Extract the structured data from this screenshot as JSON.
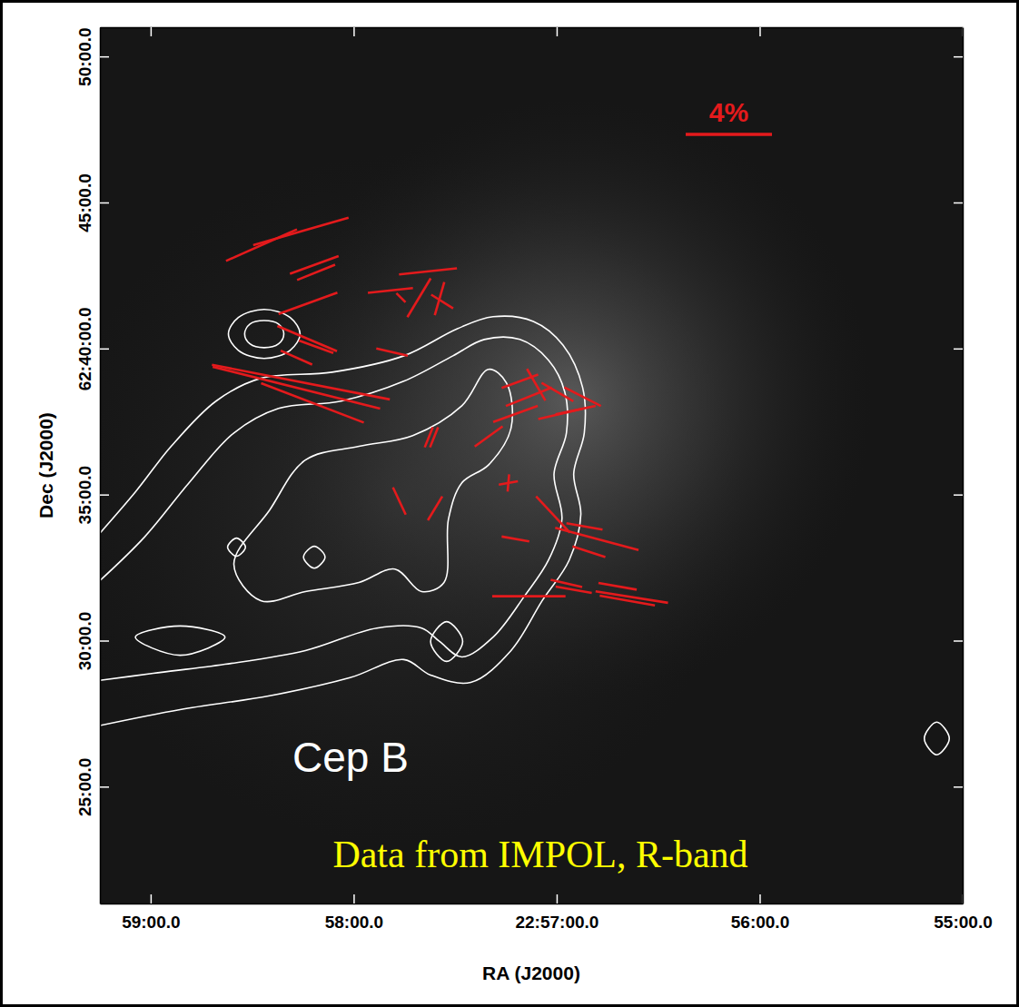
{
  "chart_data": {
    "type": "polarization_map",
    "x_label": "RA (J2000)",
    "y_label": "Dec (J2000)",
    "xlim": [
      59.25,
      55.0
    ],
    "ylim": [
      21,
      51
    ],
    "xticks": [
      {
        "value": 59,
        "label": "59:00.0"
      },
      {
        "value": 58,
        "label": "58:00.0"
      },
      {
        "value": 57,
        "label": "22:57:00.0"
      },
      {
        "value": 56,
        "label": "56:00.0"
      },
      {
        "value": 55,
        "label": "55:00.0"
      }
    ],
    "yticks": [
      {
        "value": 50,
        "label": "50:00.0"
      },
      {
        "value": 45,
        "label": "45:00.0"
      },
      {
        "value": 40,
        "label": "62:40:00.0"
      },
      {
        "value": 35,
        "label": "35:00.0"
      },
      {
        "value": 30,
        "label": "30:00.0"
      },
      {
        "value": 25,
        "label": "25:00.0"
      }
    ],
    "vectors": {
      "color": "#e41a1c",
      "ra": [
        58.454,
        58.26,
        58.194,
        58.185,
        58.225,
        57.819,
        57.634,
        57.678,
        57.577,
        57.564,
        57.767,
        57.811,
        58.229,
        58.185,
        58.26,
        58.282,
        58.203,
        58.282,
        57.63,
        57.604,
        57.181,
        57.137,
        57.203,
        57.335,
        57.101,
        56.996,
        56.872,
        56.982,
        56.907,
        57.775,
        57.599,
        57.238,
        57.238,
        57.018,
        56.802,
        56.863,
        57.203,
        56.841,
        57.137,
        56.952,
        56.916,
        56.7,
        56.63,
        56.652
      ],
      "dec": [
        43.54,
        44.01,
        42.86,
        42.61,
        41.55,
        41.99,
        42.64,
        41.74,
        41.71,
        41.61,
        41.74,
        39.88,
        40.34,
        40.06,
        38.85,
        38.66,
        38.14,
        39.69,
        36.96,
        36.96,
        38.88,
        38.35,
        37.76,
        36.99,
        38.76,
        38.51,
        38.35,
        37.76,
        37.89,
        34.78,
        34.53,
        35.4,
        35.4,
        34.32,
        33.48,
        33.91,
        33.48,
        33.04,
        31.52,
        31.96,
        31.74,
        31.86,
        31.49,
        31.37
      ],
      "p": [
        3.6,
        4.6,
        2.4,
        1.9,
        2.9,
        2.1,
        2.7,
        2.1,
        1.6,
        1.2,
        0.6,
        1.5,
        3.0,
        1.7,
        8.4,
        8.0,
        5.1,
        1.6,
        1.0,
        1.0,
        1.8,
        2.3,
        2.2,
        1.6,
        1.7,
        1.7,
        1.9,
        2.1,
        1.9,
        1.4,
        1.3,
        0.9,
        0.8,
        2.3,
        4.0,
        1.7,
        1.3,
        1.6,
        3.4,
        1.5,
        1.7,
        1.8,
        3.4,
        2.6
      ],
      "angle": [
        114,
        106,
        110,
        112,
        110,
        96,
        96,
        149,
        164,
        58,
        45,
        77,
        67,
        70,
        79,
        76,
        69,
        66,
        158,
        158,
        110,
        112,
        110,
        126,
        30,
        60,
        63,
        103,
        102,
        25,
        149,
        100,
        175,
        43,
        75,
        80,
        80,
        72,
        90,
        77,
        80,
        80,
        81,
        80
      ]
    },
    "scale_bar": {
      "value": 4,
      "label": "4%"
    },
    "contours": {
      "color": "#ffffff",
      "open": [
        {
          "ra": [
            59.26,
            59.075,
            58.899,
            58.678,
            58.458,
            58.106,
            57.753,
            57.489,
            57.313,
            57.115,
            56.969,
            56.872,
            56.864,
            56.916,
            56.881,
            56.938,
            57.071,
            57.225,
            57.423,
            57.621,
            57.753,
            58.018,
            58.414,
            58.855,
            59.26
          ],
          "dec": [
            33.6,
            35.09,
            36.65,
            38.2,
            38.98,
            39.19,
            39.75,
            40.68,
            41.09,
            40.93,
            40.12,
            38.66,
            37.11,
            35.71,
            34.32,
            32.76,
            31.37,
            29.66,
            28.57,
            28.82,
            29.35,
            28.73,
            28.11,
            27.64,
            27.08
          ]
        },
        {
          "ra": [
            59.26,
            59.031,
            58.811,
            58.59,
            58.37,
            58.062,
            57.753,
            57.511,
            57.357,
            57.181,
            57.04,
            56.96,
            56.952,
            57.013,
            56.974,
            57.04,
            57.159,
            57.313,
            57.467,
            57.577,
            57.665,
            57.886,
            58.238,
            58.634,
            58.987,
            59.26
          ],
          "dec": [
            31.99,
            33.54,
            35.4,
            37.11,
            37.95,
            38.2,
            38.88,
            39.75,
            40.31,
            40.31,
            39.6,
            38.51,
            37.11,
            35.71,
            34.16,
            32.76,
            31.52,
            30.12,
            29.44,
            29.97,
            30.43,
            30.43,
            29.66,
            29.19,
            28.88,
            28.63
          ]
        }
      ],
      "closed": [
        {
          "ra": [
            58.59,
            58.414,
            58.238,
            57.974,
            57.709,
            57.467,
            57.335,
            57.247,
            57.225,
            57.335,
            57.467,
            57.533,
            57.555,
            57.665,
            57.797,
            57.974,
            58.238,
            58.458
          ],
          "dec": [
            32.61,
            34.47,
            36.18,
            36.65,
            37.02,
            38.04,
            39.29,
            38.82,
            37.27,
            36.02,
            35.4,
            34.16,
            31.99,
            31.68,
            32.45,
            31.99,
            31.68,
            31.37
          ]
        },
        {
          "ra": [
            58.617,
            58.568,
            58.441,
            58.313,
            58.264,
            58.313,
            58.441,
            58.568
          ],
          "dec": [
            40.5,
            41.06,
            41.34,
            41.06,
            40.5,
            39.94,
            39.66,
            39.94
          ]
        },
        {
          "ra": [
            58.537,
            58.511,
            58.441,
            58.37,
            58.344,
            58.37,
            58.441,
            58.511
          ],
          "dec": [
            40.5,
            40.84,
            40.96,
            40.84,
            40.5,
            40.16,
            40.03,
            40.16
          ]
        },
        {
          "ra": [
            58.621,
            58.577,
            58.533,
            58.577
          ],
          "dec": [
            33.2,
            33.51,
            33.2,
            32.89
          ]
        },
        {
          "ra": [
            58.247,
            58.194,
            58.141,
            58.194
          ],
          "dec": [
            32.86,
            33.23,
            32.86,
            32.48
          ]
        },
        {
          "ra": [
            57.621,
            57.542,
            57.463,
            57.542
          ],
          "dec": [
            29.97,
            30.65,
            29.97,
            29.29
          ]
        },
        {
          "ra": [
            59.075,
            58.855,
            58.634,
            58.855
          ],
          "dec": [
            30.12,
            30.5,
            30.12,
            29.5
          ]
        },
        {
          "ra": [
            55.189,
            55.128,
            55.066,
            55.128
          ],
          "dec": [
            26.65,
            27.21,
            26.65,
            26.09
          ]
        }
      ]
    },
    "annotations": [
      {
        "text": "Cep B",
        "color": "#ffffff"
      },
      {
        "text": "Data from IMPOL, R-band",
        "color": "#ffff00"
      }
    ]
  }
}
